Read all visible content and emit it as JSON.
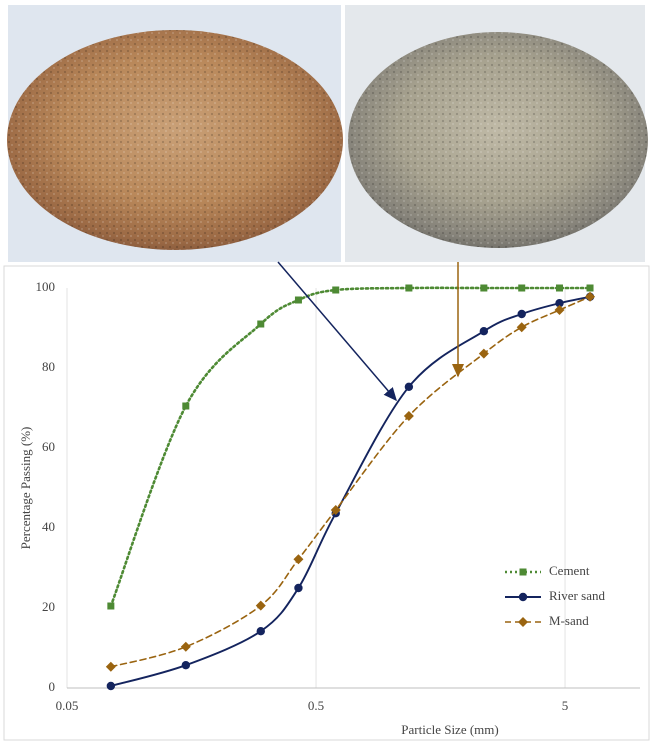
{
  "chart_data": {
    "type": "line",
    "x_label": "Particle Size (mm)",
    "y_label": "Percentage Passing (%)",
    "x": [
      0.075,
      0.15,
      0.3,
      0.425,
      0.6,
      1.18,
      2.36,
      3.35,
      4.75,
      6.3
    ],
    "series": [
      {
        "name": "Cement",
        "color": "#4e8a34",
        "style": "dotted",
        "marker": "square",
        "values": [
          20.5,
          70.5,
          91,
          97,
          99.5,
          100,
          100,
          100,
          100,
          100
        ]
      },
      {
        "name": "River sand",
        "color": "#14245e",
        "style": "solid",
        "marker": "circle",
        "values": [
          0.5,
          5.7,
          14.2,
          25,
          43.7,
          75.3,
          89.2,
          93.5,
          96.2,
          97.8
        ]
      },
      {
        "name": "M-sand",
        "color": "#9a6410",
        "style": "dashed",
        "marker": "diamond",
        "values": [
          5.3,
          10.3,
          20.6,
          32.2,
          44.5,
          68,
          83.6,
          90.2,
          94.5,
          97.8
        ]
      }
    ],
    "xlog": true,
    "xlim": [
      0.05,
      10
    ],
    "xticks": [
      0.05,
      0.5,
      5
    ],
    "ylim": [
      0,
      100
    ],
    "yticks": [
      0,
      20,
      40,
      60,
      80,
      100
    ],
    "grid": "x",
    "legend": "lower right"
  }
}
